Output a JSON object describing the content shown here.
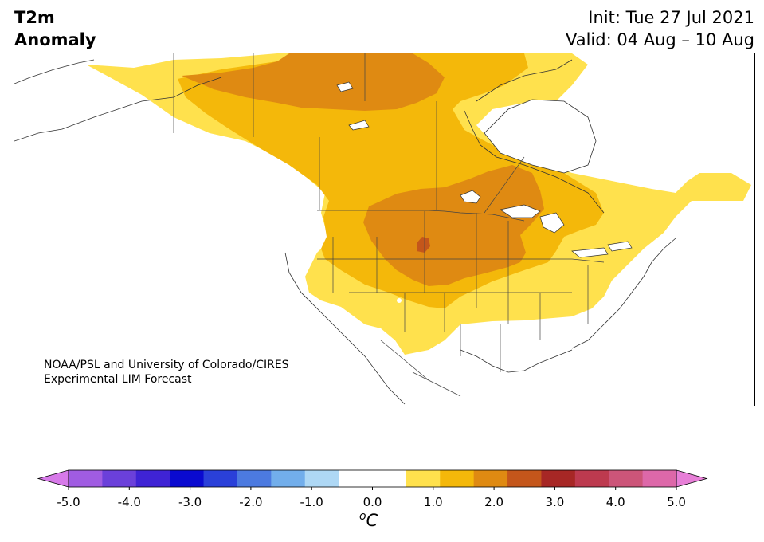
{
  "header": {
    "title_line1": "T2m",
    "title_line2": "Anomaly",
    "init": "Init: Tue 27 Jul 2021",
    "valid": "Valid: 04 Aug – 10 Aug"
  },
  "map": {
    "region": "North America",
    "credit_line1": "NOAA/PSL and University of Colorado/CIRES",
    "credit_line2": "Experimental LIM Forecast",
    "anomaly_levels": [
      {
        "level": "0.5 to 1.0",
        "color": "#ffe14d"
      },
      {
        "level": "1.0 to 1.5",
        "color": "#f4b80a"
      },
      {
        "level": "1.5 to 2.0",
        "color": "#df8a12"
      },
      {
        "level": "2.0 to 2.5",
        "color": "#c4561b"
      }
    ]
  },
  "colorbar": {
    "unit_base": "C",
    "unit_sup": "o",
    "colors": [
      "#d77ae9",
      "#a05ce2",
      "#6b40da",
      "#3f23d5",
      "#0a0ad0",
      "#2a40d9",
      "#4c7ae0",
      "#72aeeb",
      "#aed8f5",
      "#ffffff",
      "#ffffff",
      "#ffe14d",
      "#f4b80a",
      "#df8a12",
      "#c4561b",
      "#a72725",
      "#bd3a4f",
      "#cc5579",
      "#dd68a9",
      "#e77fd7"
    ],
    "tick_labels": [
      "-5.0",
      "-4.0",
      "-3.0",
      "-2.0",
      "-1.0",
      "0.0",
      "1.0",
      "2.0",
      "3.0",
      "4.0",
      "5.0"
    ]
  }
}
